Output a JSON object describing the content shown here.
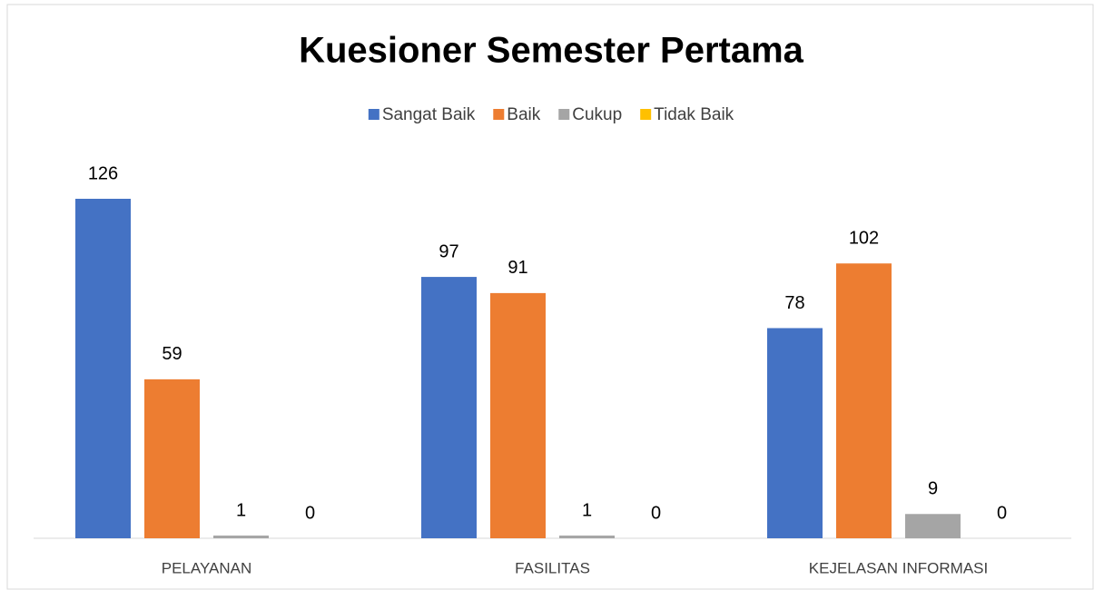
{
  "chart_data": {
    "type": "bar",
    "title": "Kuesioner Semester Pertama",
    "categories": [
      "PELAYANAN",
      "FASILITAS",
      "KEJELASAN INFORMASI"
    ],
    "series": [
      {
        "name": "Sangat Baik",
        "color": "#4472c4",
        "values": [
          126,
          97,
          78
        ]
      },
      {
        "name": "Baik",
        "color": "#ed7d31",
        "values": [
          59,
          91,
          102
        ]
      },
      {
        "name": "Cukup",
        "color": "#a5a5a5",
        "values": [
          1,
          1,
          9
        ]
      },
      {
        "name": "Tidak Baik",
        "color": "#ffc000",
        "values": [
          0,
          0,
          0
        ]
      }
    ],
    "legend": "top"
  }
}
